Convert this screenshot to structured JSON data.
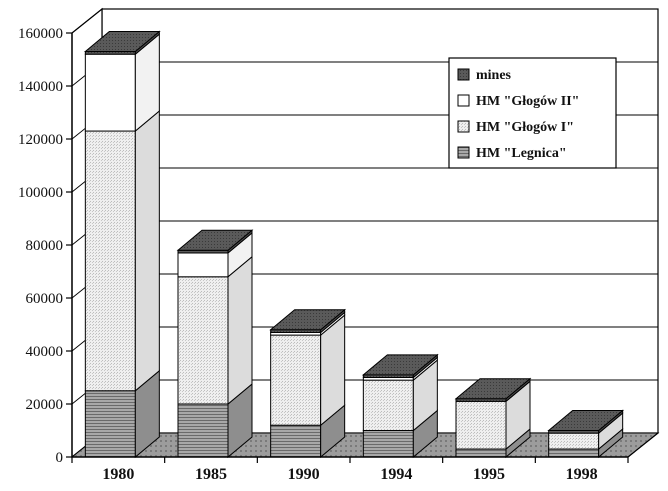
{
  "chart_data": {
    "type": "bar",
    "stacked": true,
    "three_d": true,
    "categories": [
      "1980",
      "1985",
      "1990",
      "1994",
      "1995",
      "1998"
    ],
    "series": [
      {
        "name": "HM \"Legnica\"",
        "values": [
          25000,
          20000,
          12000,
          10000,
          3000,
          3000
        ],
        "color": "#9a9a9a",
        "pattern": "hlines"
      },
      {
        "name": "HM \"Głogów I\"",
        "values": [
          98000,
          48000,
          34000,
          19000,
          18000,
          6000
        ],
        "color": "#e6e6e6",
        "pattern": "dots"
      },
      {
        "name": "HM \"Głogów II\"",
        "values": [
          29000,
          9000,
          1000,
          1000,
          0,
          0
        ],
        "color": "#ffffff",
        "pattern": "none"
      },
      {
        "name": "mines",
        "values": [
          1000,
          1000,
          1000,
          1000,
          1000,
          1000
        ],
        "color": "#555555",
        "pattern": "dark"
      }
    ],
    "ylim": [
      0,
      160000
    ],
    "yticks": [
      0,
      20000,
      40000,
      60000,
      80000,
      100000,
      120000,
      140000,
      160000
    ],
    "grid": true,
    "legend_position": "top-right",
    "legend_order": [
      "mines",
      "HM \"Głogów II\"",
      "HM \"Głogów I\"",
      "HM \"Legnica\""
    ],
    "title": "",
    "xlabel": "",
    "ylabel": ""
  }
}
